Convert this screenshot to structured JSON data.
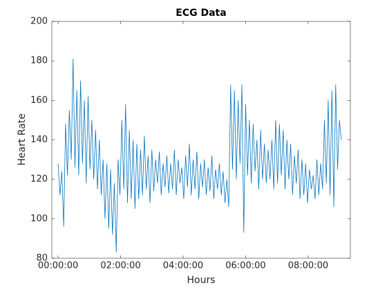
{
  "chart_data": {
    "type": "line",
    "title": "ECG Data",
    "x_label": "Hours",
    "y_label": "Heart Rate",
    "color": "#0072bd",
    "xlim": [
      -0.2,
      9.35
    ],
    "ylim": [
      80,
      200
    ],
    "xticks": [
      {
        "value": 0,
        "label": "00:00:00"
      },
      {
        "value": 2,
        "label": "02:00:00"
      },
      {
        "value": 4,
        "label": "04:00:00"
      },
      {
        "value": 6,
        "label": "06:00:00"
      },
      {
        "value": 8,
        "label": "08:00:00"
      }
    ],
    "yticks": [
      80,
      100,
      120,
      140,
      160,
      180,
      200
    ],
    "x": [
      0,
      0.06,
      0.12,
      0.18,
      0.24,
      0.3,
      0.36,
      0.42,
      0.48,
      0.54,
      0.6,
      0.66,
      0.72,
      0.78,
      0.84,
      0.9,
      0.96,
      1.02,
      1.08,
      1.14,
      1.2,
      1.26,
      1.32,
      1.38,
      1.44,
      1.5,
      1.56,
      1.62,
      1.68,
      1.74,
      1.8,
      1.86,
      1.92,
      1.98,
      2.04,
      2.1,
      2.16,
      2.22,
      2.28,
      2.34,
      2.4,
      2.46,
      2.52,
      2.58,
      2.64,
      2.7,
      2.76,
      2.82,
      2.88,
      2.94,
      3,
      3.06,
      3.12,
      3.18,
      3.24,
      3.3,
      3.36,
      3.42,
      3.48,
      3.54,
      3.6,
      3.66,
      3.72,
      3.78,
      3.84,
      3.9,
      3.96,
      4.02,
      4.08,
      4.14,
      4.2,
      4.26,
      4.32,
      4.38,
      4.44,
      4.5,
      4.56,
      4.62,
      4.68,
      4.74,
      4.8,
      4.86,
      4.92,
      4.98,
      5.04,
      5.1,
      5.16,
      5.22,
      5.28,
      5.34,
      5.4,
      5.46,
      5.52,
      5.58,
      5.64,
      5.7,
      5.76,
      5.82,
      5.88,
      5.94,
      6,
      6.06,
      6.12,
      6.18,
      6.24,
      6.3,
      6.36,
      6.42,
      6.48,
      6.54,
      6.6,
      6.66,
      6.72,
      6.78,
      6.84,
      6.9,
      6.96,
      7.02,
      7.08,
      7.14,
      7.2,
      7.26,
      7.32,
      7.38,
      7.44,
      7.5,
      7.56,
      7.62,
      7.68,
      7.74,
      7.8,
      7.86,
      7.92,
      7.98,
      8.04,
      8.1,
      8.16,
      8.22,
      8.28,
      8.34,
      8.4,
      8.46,
      8.52,
      8.58,
      8.64,
      8.7,
      8.76,
      8.82,
      8.88,
      8.94,
      9,
      9.06
    ],
    "values": [
      128,
      112,
      124,
      96,
      148,
      122,
      155,
      130,
      181,
      126,
      165,
      122,
      170,
      128,
      160,
      118,
      162,
      125,
      150,
      120,
      145,
      115,
      140,
      112,
      130,
      100,
      128,
      95,
      125,
      92,
      118,
      83,
      130,
      112,
      150,
      115,
      158,
      108,
      145,
      110,
      140,
      105,
      138,
      110,
      135,
      112,
      142,
      115,
      132,
      108,
      135,
      114,
      130,
      118,
      134,
      112,
      128,
      116,
      132,
      113,
      128,
      115,
      135,
      112,
      130,
      118,
      126,
      110,
      132,
      116,
      138,
      112,
      130,
      115,
      134,
      110,
      128,
      116,
      130,
      112,
      126,
      114,
      132,
      110,
      125,
      115,
      128,
      112,
      124,
      108,
      120,
      106,
      168,
      125,
      165,
      120,
      160,
      128,
      168,
      93,
      158,
      122,
      150,
      118,
      148,
      124,
      140,
      115,
      145,
      120,
      138,
      118,
      135,
      120,
      140,
      115,
      150,
      118,
      148,
      122,
      145,
      115,
      140,
      120,
      138,
      112,
      132,
      118,
      135,
      110,
      130,
      112,
      128,
      108,
      125,
      115,
      122,
      110,
      130,
      112,
      128,
      115,
      150,
      118,
      160,
      112,
      165,
      106,
      168,
      125,
      150,
      140
    ]
  }
}
